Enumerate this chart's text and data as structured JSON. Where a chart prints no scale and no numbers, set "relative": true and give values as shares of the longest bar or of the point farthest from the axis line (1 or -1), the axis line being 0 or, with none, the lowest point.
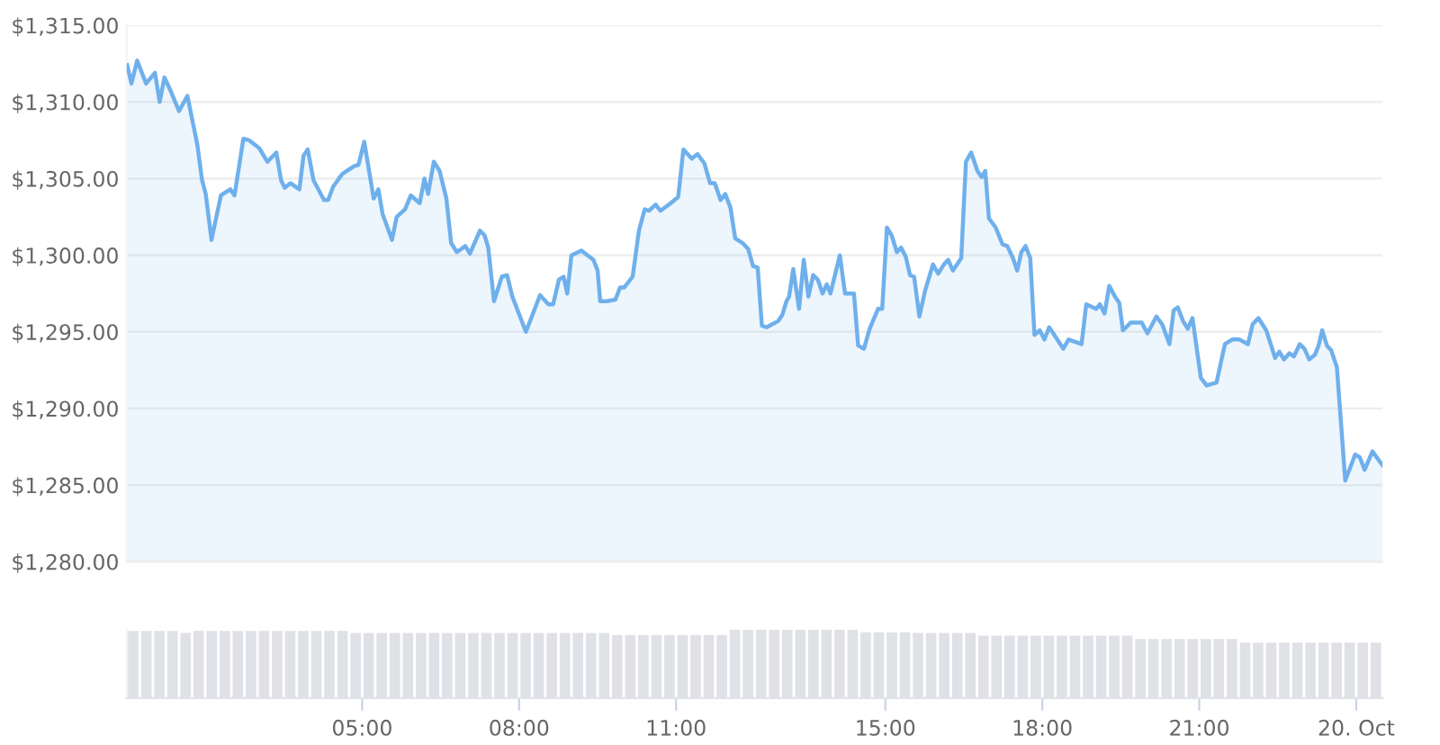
{
  "chart_data": [
    {
      "type": "area",
      "color": "#6fb0ec",
      "grid": "y",
      "tick_labels": "y",
      "xlim": [
        0.5,
        24.5
      ],
      "ylim": [
        1280,
        1315
      ],
      "yticks": [
        {
          "value": 1280,
          "label": "$1,280.00"
        },
        {
          "value": 1285,
          "label": "$1,285.00"
        },
        {
          "value": 1290,
          "label": "$1,290.00"
        },
        {
          "value": 1295,
          "label": "$1,295.00"
        },
        {
          "value": 1300,
          "label": "$1,300.00"
        },
        {
          "value": 1305,
          "label": "$1,305.00"
        },
        {
          "value": 1310,
          "label": "$1,310.00"
        },
        {
          "value": 1315,
          "label": "$1,315.00"
        }
      ],
      "x": [
        0.51,
        0.59,
        0.7,
        0.87,
        1.04,
        1.13,
        1.22,
        1.33,
        1.5,
        1.66,
        1.85,
        1.94,
        2.01,
        2.12,
        2.3,
        2.48,
        2.56,
        2.73,
        2.84,
        3.03,
        3.19,
        3.36,
        3.45,
        3.52,
        3.63,
        3.8,
        3.88,
        3.96,
        4.07,
        4.27,
        4.35,
        4.45,
        4.62,
        4.84,
        4.93,
        5.04,
        5.22,
        5.31,
        5.39,
        5.57,
        5.66,
        5.82,
        5.93,
        6.1,
        6.19,
        6.26,
        6.37,
        6.48,
        6.61,
        6.7,
        6.81,
        6.97,
        7.06,
        7.25,
        7.34,
        7.41,
        7.52,
        7.67,
        7.77,
        7.87,
        8.13,
        8.4,
        8.56,
        8.65,
        8.76,
        8.85,
        8.92,
        9.0,
        9.19,
        9.42,
        9.5,
        9.55,
        9.68,
        9.84,
        9.93,
        10.01,
        10.17,
        10.29,
        10.4,
        10.48,
        10.61,
        10.7,
        10.86,
        11.04,
        11.14,
        11.3,
        11.41,
        11.54,
        11.65,
        11.74,
        11.85,
        11.94,
        12.04,
        12.13,
        12.27,
        12.38,
        12.47,
        12.56,
        12.64,
        12.73,
        12.95,
        13.03,
        13.11,
        13.16,
        13.24,
        13.35,
        13.44,
        13.53,
        13.62,
        13.71,
        13.8,
        13.88,
        13.95,
        14.13,
        14.23,
        14.4,
        14.48,
        14.59,
        14.7,
        14.86,
        14.94,
        15.03,
        15.12,
        15.22,
        15.3,
        15.39,
        15.47,
        15.55,
        15.65,
        15.76,
        15.91,
        16.01,
        16.12,
        16.2,
        16.29,
        16.45,
        16.54,
        16.64,
        16.76,
        16.84,
        16.91,
        16.98,
        17.11,
        17.24,
        17.33,
        17.44,
        17.52,
        17.6,
        17.68,
        17.77,
        17.85,
        17.95,
        18.04,
        18.13,
        18.21,
        18.4,
        18.5,
        18.75,
        18.84,
        19.03,
        19.1,
        19.19,
        19.28,
        19.39,
        19.47,
        19.54,
        19.69,
        19.9,
        20.01,
        20.18,
        20.29,
        20.43,
        20.51,
        20.59,
        20.69,
        20.78,
        20.87,
        21.03,
        21.14,
        21.33,
        21.49,
        21.63,
        21.77,
        21.93,
        22.02,
        22.13,
        22.28,
        22.45,
        22.53,
        22.62,
        22.72,
        22.81,
        22.92,
        23.01,
        23.1,
        23.21,
        23.28,
        23.35,
        23.44,
        23.52,
        23.63,
        23.79,
        23.98,
        24.07,
        24.16,
        24.31,
        24.5
      ],
      "values": [
        1312.4,
        1311.2,
        1312.7,
        1311.2,
        1311.9,
        1310.0,
        1311.6,
        1310.8,
        1309.4,
        1310.4,
        1307.2,
        1304.9,
        1304.0,
        1301.0,
        1303.9,
        1304.3,
        1303.9,
        1307.6,
        1307.5,
        1307.0,
        1306.1,
        1306.7,
        1304.9,
        1304.4,
        1304.7,
        1304.3,
        1306.5,
        1306.9,
        1304.9,
        1303.6,
        1303.6,
        1304.5,
        1305.3,
        1305.8,
        1305.9,
        1307.4,
        1303.7,
        1304.3,
        1302.7,
        1301.0,
        1302.5,
        1303.0,
        1303.9,
        1303.4,
        1305.0,
        1304.0,
        1306.1,
        1305.5,
        1303.7,
        1300.8,
        1300.2,
        1300.6,
        1300.1,
        1301.6,
        1301.3,
        1300.5,
        1297.0,
        1298.6,
        1298.7,
        1297.3,
        1295.0,
        1297.4,
        1296.8,
        1296.8,
        1298.4,
        1298.6,
        1297.5,
        1300.0,
        1300.3,
        1299.7,
        1299.0,
        1297.0,
        1297.0,
        1297.1,
        1297.9,
        1297.9,
        1298.6,
        1301.6,
        1303.0,
        1302.9,
        1303.3,
        1302.9,
        1303.3,
        1303.8,
        1306.9,
        1306.3,
        1306.6,
        1306.0,
        1304.7,
        1304.7,
        1303.6,
        1304.0,
        1303.1,
        1301.1,
        1300.8,
        1300.4,
        1299.3,
        1299.2,
        1295.4,
        1295.3,
        1295.7,
        1296.1,
        1297.0,
        1297.3,
        1299.1,
        1296.5,
        1299.7,
        1297.3,
        1298.7,
        1298.4,
        1297.5,
        1298.1,
        1297.5,
        1300.0,
        1297.5,
        1297.5,
        1294.1,
        1293.9,
        1295.2,
        1296.5,
        1296.5,
        1301.8,
        1301.3,
        1300.2,
        1300.5,
        1299.9,
        1298.7,
        1298.6,
        1296.0,
        1297.7,
        1299.4,
        1298.8,
        1299.4,
        1299.7,
        1299.0,
        1299.8,
        1306.1,
        1306.7,
        1305.5,
        1305.1,
        1305.5,
        1302.4,
        1301.8,
        1300.7,
        1300.6,
        1299.8,
        1299.0,
        1300.2,
        1300.6,
        1299.8,
        1294.8,
        1295.1,
        1294.5,
        1295.3,
        1294.9,
        1293.9,
        1294.5,
        1294.2,
        1296.8,
        1296.5,
        1296.8,
        1296.2,
        1298.0,
        1297.3,
        1296.9,
        1295.1,
        1295.6,
        1295.6,
        1294.9,
        1296.0,
        1295.5,
        1294.2,
        1296.4,
        1296.6,
        1295.7,
        1295.2,
        1295.9,
        1292.0,
        1291.5,
        1291.7,
        1294.2,
        1294.5,
        1294.5,
        1294.2,
        1295.5,
        1295.9,
        1295.1,
        1293.3,
        1293.7,
        1293.2,
        1293.6,
        1293.4,
        1294.2,
        1293.9,
        1293.2,
        1293.5,
        1294.1,
        1295.1,
        1294.1,
        1293.8,
        1292.7,
        1285.3,
        1287.0,
        1286.8,
        1286.0,
        1287.2,
        1286.3
      ]
    },
    {
      "type": "bar",
      "color": "#dfe1e6",
      "relative": true,
      "tick_labels": "x",
      "xlim": [
        0.5,
        24.5
      ],
      "xticks": [
        {
          "value": 5,
          "label": "05:00"
        },
        {
          "value": 8,
          "label": "08:00"
        },
        {
          "value": 11,
          "label": "11:00"
        },
        {
          "value": 15,
          "label": "15:00"
        },
        {
          "value": 18,
          "label": "18:00"
        },
        {
          "value": 21,
          "label": "21:00"
        },
        {
          "value": 24,
          "label": "20. Oct"
        }
      ],
      "x": [
        0.625,
        0.875,
        1.125,
        1.375,
        1.625,
        1.875,
        2.125,
        2.375,
        2.625,
        2.875,
        3.125,
        3.375,
        3.625,
        3.875,
        4.125,
        4.375,
        4.625,
        4.875,
        5.125,
        5.375,
        5.625,
        5.875,
        6.125,
        6.375,
        6.625,
        6.875,
        7.125,
        7.375,
        7.625,
        7.875,
        8.125,
        8.375,
        8.625,
        8.875,
        9.125,
        9.375,
        9.625,
        9.875,
        10.125,
        10.375,
        10.625,
        10.875,
        11.125,
        11.375,
        11.625,
        11.875,
        12.125,
        12.375,
        12.625,
        12.875,
        13.125,
        13.375,
        13.625,
        13.875,
        14.125,
        14.375,
        14.625,
        14.875,
        15.125,
        15.375,
        15.625,
        15.875,
        16.125,
        16.375,
        16.625,
        16.875,
        17.125,
        17.375,
        17.625,
        17.875,
        18.125,
        18.375,
        18.625,
        18.875,
        19.125,
        19.375,
        19.625,
        19.875,
        20.125,
        20.375,
        20.625,
        20.875,
        21.125,
        21.375,
        21.625,
        21.875,
        22.125,
        22.375,
        22.625,
        22.875,
        23.125,
        23.375,
        23.625,
        23.875,
        24.125,
        24.375
      ],
      "values": [
        0.98,
        0.98,
        0.98,
        0.98,
        0.95,
        0.98,
        0.98,
        0.98,
        0.98,
        0.98,
        0.98,
        0.98,
        0.98,
        0.98,
        0.98,
        0.98,
        0.98,
        0.95,
        0.95,
        0.95,
        0.95,
        0.95,
        0.95,
        0.95,
        0.95,
        0.95,
        0.95,
        0.95,
        0.95,
        0.95,
        0.95,
        0.95,
        0.95,
        0.95,
        0.95,
        0.95,
        0.95,
        0.92,
        0.92,
        0.92,
        0.92,
        0.92,
        0.92,
        0.92,
        0.92,
        0.92,
        1.0,
        1.0,
        1.0,
        1.0,
        1.0,
        1.0,
        1.0,
        1.0,
        1.0,
        1.0,
        0.96,
        0.96,
        0.96,
        0.96,
        0.95,
        0.95,
        0.95,
        0.95,
        0.95,
        0.91,
        0.91,
        0.91,
        0.91,
        0.91,
        0.91,
        0.91,
        0.91,
        0.91,
        0.91,
        0.91,
        0.91,
        0.86,
        0.86,
        0.86,
        0.86,
        0.86,
        0.86,
        0.86,
        0.86,
        0.81,
        0.81,
        0.81,
        0.81,
        0.81,
        0.81,
        0.81,
        0.81,
        0.81,
        0.81,
        0.81
      ]
    }
  ]
}
